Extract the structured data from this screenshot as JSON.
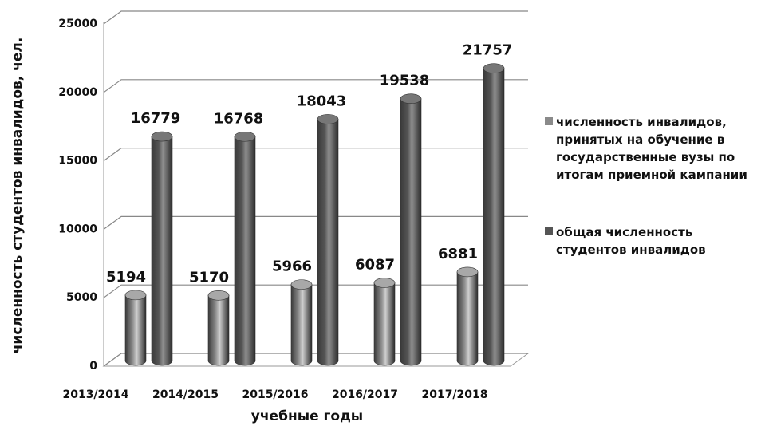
{
  "chart_data": {
    "type": "bar",
    "y_label": "численность студентов инвалидов, чел.",
    "x_label": "учебные годы",
    "categories": [
      "2013/2014",
      "2014/2015",
      "2015/2016",
      "2016/2017",
      "2017/2018"
    ],
    "series": [
      {
        "name": "численность инвалидов, принятых на обучение в государственные вузы по итогам приемной кампании",
        "color": "#8a8a8a",
        "values": [
          5194,
          5170,
          5966,
          6087,
          6881
        ]
      },
      {
        "name": "общая численность студентов инвалидов",
        "color": "#555555",
        "values": [
          16779,
          16768,
          18043,
          19538,
          21757
        ]
      }
    ],
    "ylim": [
      0,
      25000
    ],
    "yticks": [
      0,
      5000,
      10000,
      15000,
      20000,
      25000
    ],
    "grid": true
  }
}
